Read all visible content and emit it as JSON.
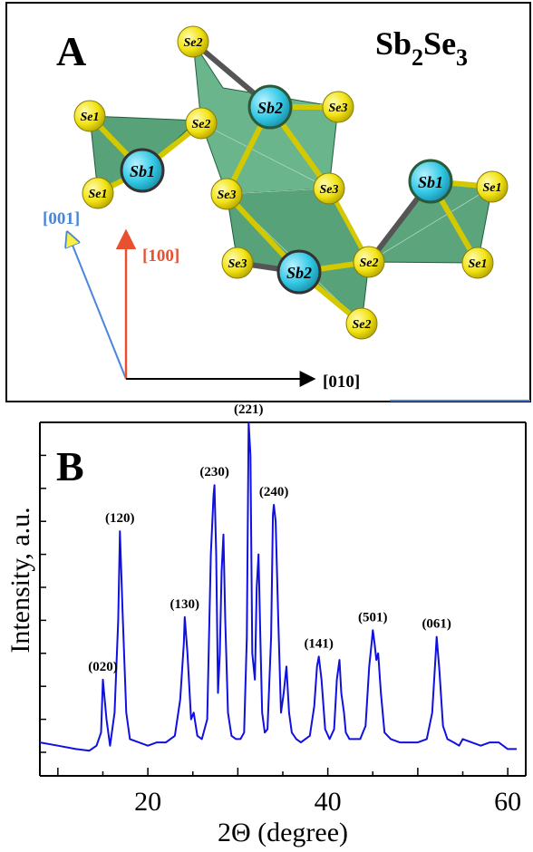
{
  "panel_a": {
    "label": "A",
    "formula": {
      "base1": "Sb",
      "sub1": "2",
      "base2": "Se",
      "sub2": "3"
    },
    "axes": {
      "a001": "[001]",
      "a100": "[100]",
      "a010": "[010]"
    },
    "atoms": {
      "se1_top": "Se1",
      "se1_left": "Se1",
      "se2_mid": "Se2",
      "sb1_left": "Sb1",
      "se2_top": "Se2",
      "sb2_top": "Sb2",
      "se3_tr": "Se3",
      "se3_mid": "Se3",
      "se3_mid2": "Se3",
      "sb1_right": "Sb1",
      "se1_r1": "Se1",
      "se1_r2": "Se1",
      "se3_bl": "Se3",
      "sb2_bot": "Sb2",
      "se2_br": "Se2",
      "se2_bot": "Se2"
    },
    "colors": {
      "sb": "#33c9e6",
      "se": "#f2e313",
      "polyhedron": "#2e8b57",
      "axis001": "#4a86d8",
      "axis100": "#e8502f",
      "axis010": "#000000"
    }
  },
  "panel_b": {
    "label": "B",
    "line_color": "#1010e0"
  },
  "chart_data": {
    "type": "line",
    "xlabel": "2Θ (degree)",
    "ylabel": "Intensity, a.u.",
    "xlim": [
      8,
      62
    ],
    "ylim": [
      0,
      100
    ],
    "xticks": [
      "20",
      "40",
      "60"
    ],
    "y_ticklabels_shown": false,
    "peaks": [
      {
        "label": "(020)",
        "x": 15.0,
        "y": 22
      },
      {
        "label": "(120)",
        "x": 16.9,
        "y": 67
      },
      {
        "label": "(130)",
        "x": 24.1,
        "y": 41
      },
      {
        "label": "(230)",
        "x": 27.4,
        "y": 81
      },
      {
        "label": "(221)",
        "x": 31.2,
        "y": 100
      },
      {
        "label": "(240)",
        "x": 34.0,
        "y": 75
      },
      {
        "label": "(141)",
        "x": 39.0,
        "y": 29
      },
      {
        "label": "(501)",
        "x": 45.0,
        "y": 37
      },
      {
        "label": "(061)",
        "x": 52.1,
        "y": 35
      }
    ],
    "x": [
      8,
      10,
      12,
      13.5,
      14.3,
      14.8,
      15.0,
      15.4,
      15.8,
      16.3,
      16.7,
      16.9,
      17.2,
      17.6,
      18.0,
      19.0,
      20.0,
      21.0,
      22.0,
      23.0,
      23.6,
      24.0,
      24.1,
      24.4,
      24.8,
      25.1,
      25.5,
      26.0,
      26.6,
      27.0,
      27.3,
      27.4,
      27.6,
      27.8,
      28.0,
      28.2,
      28.4,
      28.6,
      28.9,
      29.3,
      29.8,
      30.3,
      30.7,
      31.0,
      31.2,
      31.4,
      31.6,
      31.9,
      32.1,
      32.3,
      32.5,
      32.7,
      33.0,
      33.3,
      33.7,
      33.9,
      34.0,
      34.2,
      34.5,
      34.8,
      35.1,
      35.4,
      35.7,
      36.0,
      36.5,
      37.0,
      37.5,
      38.0,
      38.5,
      38.8,
      39.0,
      39.3,
      39.7,
      40.2,
      40.7,
      41.0,
      41.3,
      41.5,
      41.8,
      42.0,
      42.4,
      43.0,
      43.6,
      44.2,
      44.6,
      44.9,
      45.0,
      45.2,
      45.4,
      45.6,
      45.9,
      46.3,
      47.0,
      48.0,
      49.0,
      50.0,
      51.0,
      51.6,
      52.0,
      52.1,
      52.4,
      52.8,
      53.3,
      54.0,
      54.6,
      55.0,
      56.0,
      57.0,
      58.0,
      59.0,
      60.0,
      61.0
    ],
    "y": [
      3,
      2,
      1,
      0.5,
      2,
      6,
      22,
      10,
      2,
      12,
      40,
      67,
      42,
      12,
      4,
      3,
      2,
      3,
      3,
      5,
      16,
      33,
      41,
      30,
      10,
      12,
      5,
      4,
      10,
      60,
      78,
      81,
      60,
      18,
      30,
      55,
      66,
      40,
      12,
      5,
      4,
      4,
      6,
      35,
      100,
      90,
      30,
      22,
      50,
      60,
      35,
      12,
      6,
      7,
      35,
      72,
      75,
      70,
      40,
      12,
      18,
      26,
      12,
      6,
      4,
      3,
      4,
      5,
      14,
      26,
      29,
      22,
      7,
      4,
      7,
      22,
      28,
      18,
      12,
      6,
      4,
      4,
      4,
      8,
      26,
      34,
      37,
      33,
      28,
      30,
      18,
      6,
      4,
      3,
      3,
      3,
      4,
      12,
      30,
      35,
      25,
      8,
      4,
      3,
      2,
      4,
      3,
      2,
      3,
      3,
      1,
      1
    ]
  }
}
